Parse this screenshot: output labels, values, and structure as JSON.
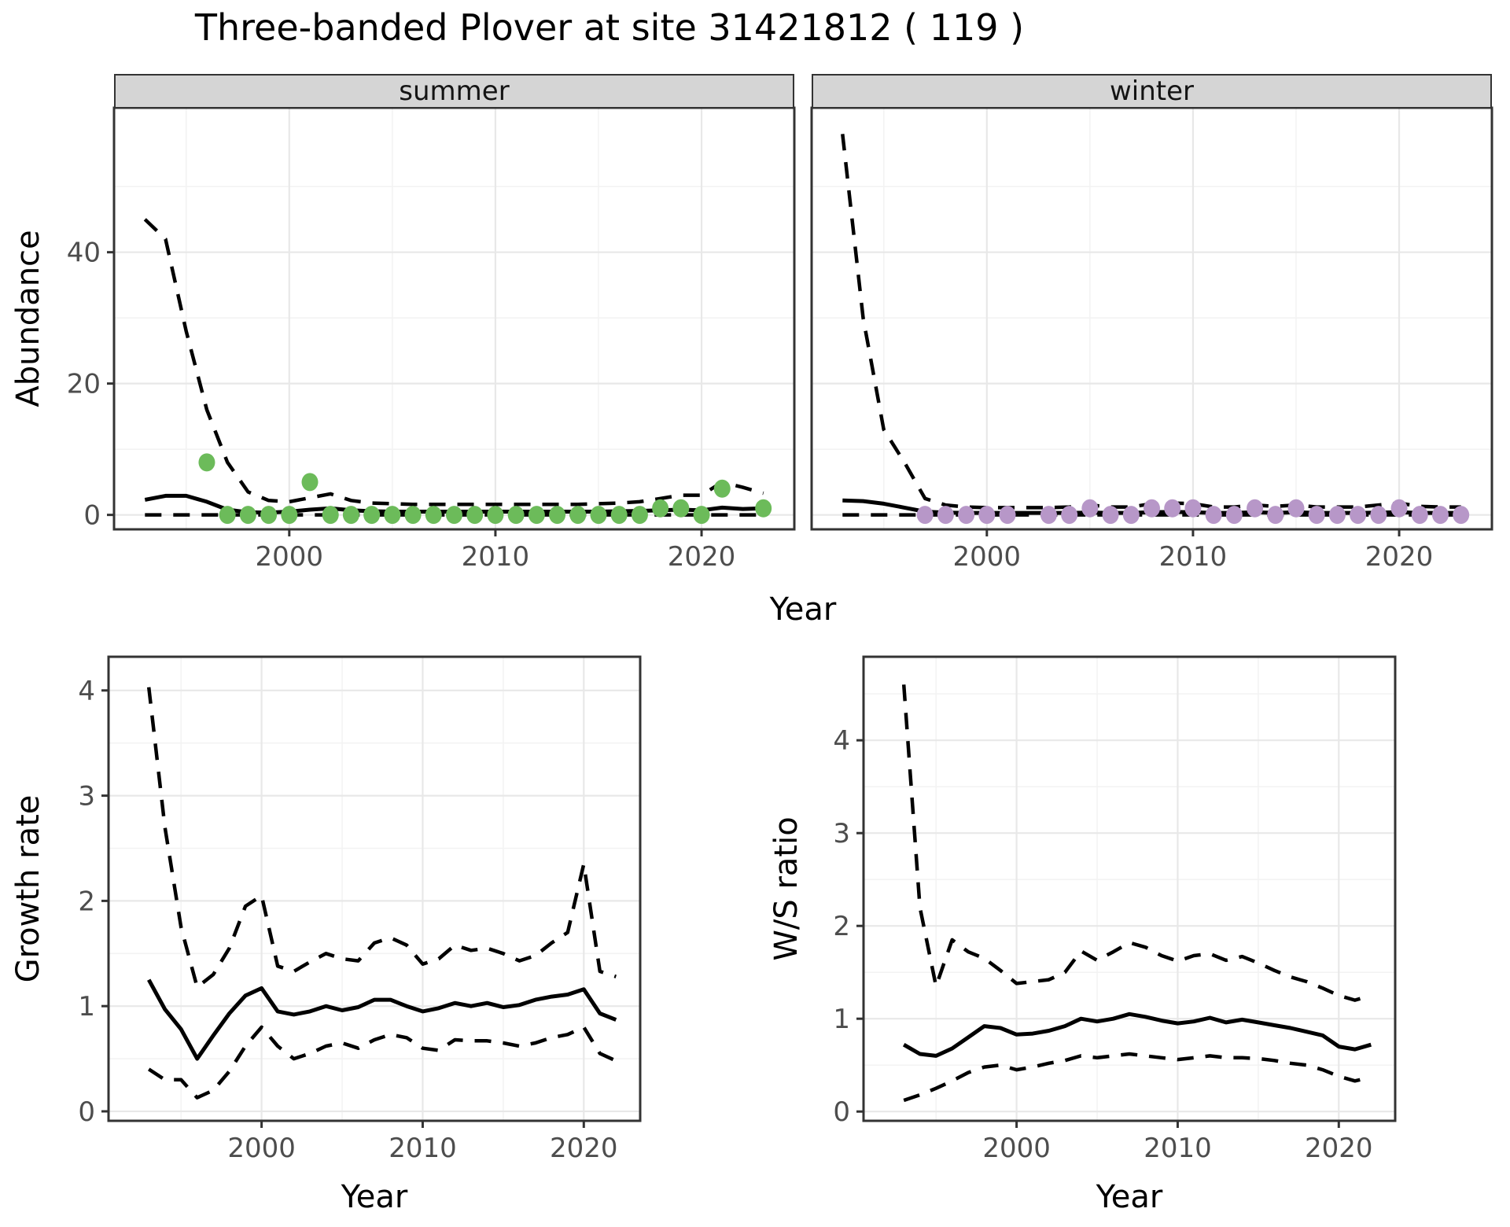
{
  "title": "Three-banded Plover at site 31421812 ( 119 )",
  "axis": {
    "abundance_label": "Abundance",
    "growth_label": "Growth rate",
    "ws_label": "W/S ratio",
    "top_x_label": "Year",
    "bottom_left_x_label": "Year",
    "bottom_right_x_label": "Year"
  },
  "colors": {
    "summer_point": "#6cbb5a",
    "winter_point": "#b797c8",
    "strip_bg": "#d5d5d5",
    "panel_border": "#333333",
    "grid_major": "#e8e8e8",
    "grid_minor": "#f3f3f3",
    "axis_text": "#4d4d4d",
    "line": "#000000"
  },
  "chart_data": [
    {
      "id": "abundance_summer",
      "type": "line",
      "strip": "summer",
      "xlabel": "Year",
      "ylabel": "Abundance",
      "xlim": [
        1991.5,
        2024.5
      ],
      "ylim": [
        -2.2,
        62
      ],
      "xticks": [
        2000,
        2010,
        2020
      ],
      "yticks": [
        0,
        20,
        40
      ],
      "x_minor": [
        1995,
        2005,
        2015
      ],
      "y_minor": [
        10,
        30,
        50
      ],
      "show_y_labels": true,
      "years": [
        1993,
        1994,
        1995,
        1996,
        1997,
        1998,
        1999,
        2000,
        2001,
        2002,
        2003,
        2004,
        2005,
        2006,
        2007,
        2008,
        2009,
        2010,
        2011,
        2012,
        2013,
        2014,
        2015,
        2016,
        2017,
        2018,
        2019,
        2020,
        2021,
        2022,
        2023
      ],
      "series": [
        {
          "name": "median",
          "style": "solid",
          "values": [
            2.3,
            2.9,
            2.9,
            2.0,
            0.8,
            0.4,
            0.35,
            0.5,
            0.8,
            1.0,
            0.7,
            0.55,
            0.5,
            0.5,
            0.5,
            0.5,
            0.5,
            0.5,
            0.5,
            0.5,
            0.5,
            0.5,
            0.5,
            0.55,
            0.6,
            0.7,
            0.8,
            0.7,
            1.1,
            0.9,
            1.0
          ]
        },
        {
          "name": "upper_ci",
          "style": "dashed",
          "values": [
            45,
            42,
            28,
            16,
            8,
            3.5,
            2.2,
            2.0,
            2.6,
            3.2,
            2.2,
            1.8,
            1.7,
            1.6,
            1.6,
            1.6,
            1.6,
            1.6,
            1.6,
            1.6,
            1.6,
            1.6,
            1.7,
            1.8,
            2.0,
            2.5,
            3.0,
            3.0,
            5.0,
            4.2,
            3.3
          ]
        },
        {
          "name": "lower_ci",
          "style": "dashed",
          "values": [
            0,
            0,
            0,
            0,
            0,
            0,
            0,
            0,
            0,
            0,
            0,
            0,
            0,
            0,
            0,
            0,
            0,
            0,
            0,
            0,
            0,
            0,
            0,
            0,
            0,
            0,
            0,
            0,
            0,
            0,
            0
          ]
        }
      ],
      "points": {
        "color_key": "summer_point",
        "x": [
          1996,
          1997,
          1998,
          1999,
          2000,
          2001,
          2002,
          2003,
          2004,
          2005,
          2006,
          2007,
          2008,
          2009,
          2010,
          2011,
          2012,
          2013,
          2014,
          2015,
          2016,
          2017,
          2018,
          2019,
          2020,
          2021,
          2023
        ],
        "y": [
          8,
          0,
          0,
          0,
          0,
          5,
          0,
          0,
          0,
          0,
          0,
          0,
          0,
          0,
          0,
          0,
          0,
          0,
          0,
          0,
          0,
          0,
          1,
          1,
          0,
          4,
          1
        ]
      }
    },
    {
      "id": "abundance_winter",
      "type": "line",
      "strip": "winter",
      "xlabel": "Year",
      "ylabel": "Abundance",
      "xlim": [
        1991.5,
        2024.5
      ],
      "ylim": [
        -2.2,
        62
      ],
      "xticks": [
        2000,
        2010,
        2020
      ],
      "yticks": [
        0,
        20,
        40
      ],
      "x_minor": [
        1995,
        2005,
        2015
      ],
      "y_minor": [
        10,
        30,
        50
      ],
      "show_y_labels": false,
      "years": [
        1993,
        1994,
        1995,
        1996,
        1997,
        1998,
        1999,
        2000,
        2001,
        2002,
        2003,
        2004,
        2005,
        2006,
        2007,
        2008,
        2009,
        2010,
        2011,
        2012,
        2013,
        2014,
        2015,
        2016,
        2017,
        2018,
        2019,
        2020,
        2021,
        2022,
        2023
      ],
      "series": [
        {
          "name": "median",
          "style": "solid",
          "values": [
            2.2,
            2.1,
            1.7,
            1.1,
            0.5,
            0.35,
            0.3,
            0.3,
            0.3,
            0.3,
            0.3,
            0.3,
            0.35,
            0.3,
            0.3,
            0.4,
            0.45,
            0.4,
            0.3,
            0.3,
            0.4,
            0.3,
            0.4,
            0.3,
            0.3,
            0.3,
            0.35,
            0.4,
            0.3,
            0.3,
            0.3
          ]
        },
        {
          "name": "upper_ci",
          "style": "dashed",
          "values": [
            58,
            30,
            13,
            8,
            2.5,
            1.5,
            1.2,
            1.1,
            1.1,
            1.1,
            1.1,
            1.2,
            1.5,
            1.2,
            1.2,
            1.7,
            1.8,
            1.7,
            1.2,
            1.2,
            1.5,
            1.3,
            1.5,
            1.2,
            1.2,
            1.2,
            1.5,
            1.8,
            1.3,
            1.2,
            1.2
          ]
        },
        {
          "name": "lower_ci",
          "style": "dashed",
          "values": [
            0,
            0,
            0,
            0,
            0,
            0,
            0,
            0,
            0,
            0,
            0,
            0,
            0,
            0,
            0,
            0,
            0,
            0,
            0,
            0,
            0,
            0,
            0,
            0,
            0,
            0,
            0,
            0,
            0,
            0,
            0
          ]
        }
      ],
      "points": {
        "color_key": "winter_point",
        "x": [
          1997,
          1998,
          1999,
          2000,
          2001,
          2003,
          2004,
          2005,
          2006,
          2007,
          2008,
          2009,
          2010,
          2011,
          2012,
          2013,
          2014,
          2015,
          2016,
          2017,
          2018,
          2019,
          2020,
          2021,
          2022,
          2023
        ],
        "y": [
          0,
          0,
          0,
          0,
          0,
          0,
          0,
          1,
          0,
          0,
          1,
          1,
          1,
          0,
          0,
          1,
          0,
          1,
          0,
          0,
          0,
          0,
          1,
          0,
          0,
          0
        ]
      }
    },
    {
      "id": "growth_rate",
      "type": "line",
      "strip": "",
      "xlabel": "Year",
      "ylabel": "Growth rate",
      "xlim": [
        1990.5,
        2023.5
      ],
      "ylim": [
        -0.09,
        4.32
      ],
      "xticks": [
        2000,
        2010,
        2020
      ],
      "yticks": [
        0,
        1,
        2,
        3,
        4
      ],
      "x_minor": [
        1995,
        2005,
        2015
      ],
      "y_minor": [
        0.5,
        1.5,
        2.5,
        3.5
      ],
      "show_y_labels": true,
      "years": [
        1993,
        1994,
        1995,
        1996,
        1997,
        1998,
        1999,
        2000,
        2001,
        2002,
        2003,
        2004,
        2005,
        2006,
        2007,
        2008,
        2009,
        2010,
        2011,
        2012,
        2013,
        2014,
        2015,
        2016,
        2017,
        2018,
        2019,
        2020,
        2021,
        2022
      ],
      "series": [
        {
          "name": "median",
          "style": "solid",
          "values": [
            1.25,
            0.97,
            0.78,
            0.5,
            0.72,
            0.93,
            1.1,
            1.17,
            0.95,
            0.92,
            0.95,
            1.0,
            0.96,
            0.99,
            1.06,
            1.06,
            1.0,
            0.95,
            0.98,
            1.03,
            1.0,
            1.03,
            0.99,
            1.01,
            1.06,
            1.09,
            1.11,
            1.16,
            0.93,
            0.87
          ]
        },
        {
          "name": "upper_ci",
          "style": "dashed",
          "values": [
            4.03,
            2.7,
            1.75,
            1.18,
            1.3,
            1.55,
            1.95,
            2.05,
            1.38,
            1.33,
            1.42,
            1.5,
            1.45,
            1.43,
            1.6,
            1.65,
            1.58,
            1.4,
            1.45,
            1.58,
            1.53,
            1.55,
            1.5,
            1.43,
            1.48,
            1.6,
            1.7,
            2.35,
            1.33,
            1.28
          ]
        },
        {
          "name": "lower_ci",
          "style": "dashed",
          "values": [
            0.4,
            0.3,
            0.3,
            0.13,
            0.2,
            0.38,
            0.62,
            0.8,
            0.62,
            0.5,
            0.55,
            0.62,
            0.65,
            0.6,
            0.68,
            0.73,
            0.7,
            0.6,
            0.58,
            0.68,
            0.67,
            0.67,
            0.65,
            0.62,
            0.65,
            0.7,
            0.73,
            0.8,
            0.55,
            0.48
          ]
        }
      ],
      "points": null
    },
    {
      "id": "ws_ratio",
      "type": "line",
      "strip": "",
      "xlabel": "Year",
      "ylabel": "W/S ratio",
      "xlim": [
        1990.5,
        2023.5
      ],
      "ylim": [
        -0.1,
        4.9
      ],
      "xticks": [
        2000,
        2010,
        2020
      ],
      "yticks": [
        0,
        1,
        2,
        3,
        4
      ],
      "x_minor": [
        1995,
        2005,
        2015
      ],
      "y_minor": [
        0.5,
        1.5,
        2.5,
        3.5,
        4.5
      ],
      "show_y_labels": true,
      "years": [
        1993,
        1994,
        1995,
        1996,
        1997,
        1998,
        1999,
        2000,
        2001,
        2002,
        2003,
        2004,
        2005,
        2006,
        2007,
        2008,
        2009,
        2010,
        2011,
        2012,
        2013,
        2014,
        2015,
        2016,
        2017,
        2018,
        2019,
        2020,
        2021,
        2022
      ],
      "series": [
        {
          "name": "median",
          "style": "solid",
          "values": [
            0.72,
            0.62,
            0.6,
            0.68,
            0.8,
            0.92,
            0.9,
            0.83,
            0.84,
            0.87,
            0.92,
            1.0,
            0.97,
            1.0,
            1.05,
            1.02,
            0.98,
            0.95,
            0.97,
            1.01,
            0.96,
            0.99,
            0.96,
            0.93,
            0.9,
            0.86,
            0.82,
            0.7,
            0.67,
            0.72
          ]
        },
        {
          "name": "upper_ci",
          "style": "dashed",
          "values": [
            4.6,
            2.2,
            1.35,
            1.85,
            1.72,
            1.65,
            1.52,
            1.38,
            1.4,
            1.42,
            1.5,
            1.73,
            1.63,
            1.72,
            1.82,
            1.77,
            1.68,
            1.62,
            1.68,
            1.7,
            1.63,
            1.67,
            1.6,
            1.52,
            1.45,
            1.4,
            1.33,
            1.25,
            1.2,
            1.25
          ]
        },
        {
          "name": "lower_ci",
          "style": "dashed",
          "values": [
            0.12,
            0.18,
            0.25,
            0.33,
            0.42,
            0.48,
            0.5,
            0.45,
            0.48,
            0.52,
            0.55,
            0.6,
            0.58,
            0.6,
            0.62,
            0.6,
            0.58,
            0.56,
            0.58,
            0.6,
            0.58,
            0.58,
            0.57,
            0.55,
            0.52,
            0.5,
            0.45,
            0.38,
            0.33,
            0.37
          ]
        }
      ],
      "points": null
    }
  ]
}
